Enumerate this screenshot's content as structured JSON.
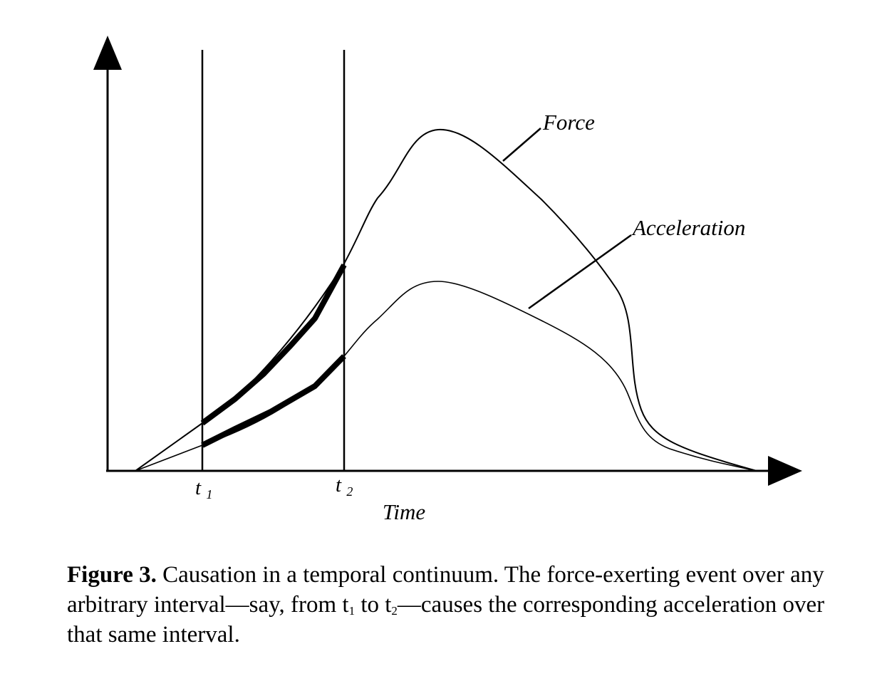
{
  "diagram": {
    "curves": [
      {
        "id": "force",
        "label": "Force"
      },
      {
        "id": "acceleration",
        "label": "Acceleration"
      }
    ],
    "x_axis_label": "Time",
    "interval_markers": [
      {
        "id": "t1",
        "base": "t",
        "sub": "1"
      },
      {
        "id": "t2",
        "base": "t",
        "sub": "2"
      }
    ],
    "highlighted_interval": "t1-t2"
  },
  "caption": {
    "figure_label": "Figure 3.",
    "text_1": " Causation in a temporal continuum. The force-exerting event over any arbitrary interval—say, from t",
    "sub_1": "1",
    "text_2": " to t",
    "sub_2": "2",
    "text_3": "—causes the corresponding acceleration over that same interval."
  }
}
